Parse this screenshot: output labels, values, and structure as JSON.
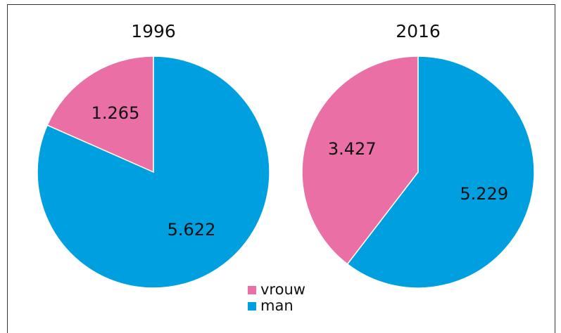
{
  "chart_data": [
    {
      "type": "pie",
      "title": "1996",
      "categories": [
        "vrouw",
        "man"
      ],
      "values": [
        1265,
        5622
      ],
      "value_labels": [
        "1.265",
        "5.622"
      ],
      "colors": [
        "#e96fa5",
        "#009fe0"
      ]
    },
    {
      "type": "pie",
      "title": "2016",
      "categories": [
        "vrouw",
        "man"
      ],
      "values": [
        3427,
        5229
      ],
      "value_labels": [
        "3.427",
        "5.229"
      ],
      "colors": [
        "#e96fa5",
        "#009fe0"
      ]
    }
  ]
}
